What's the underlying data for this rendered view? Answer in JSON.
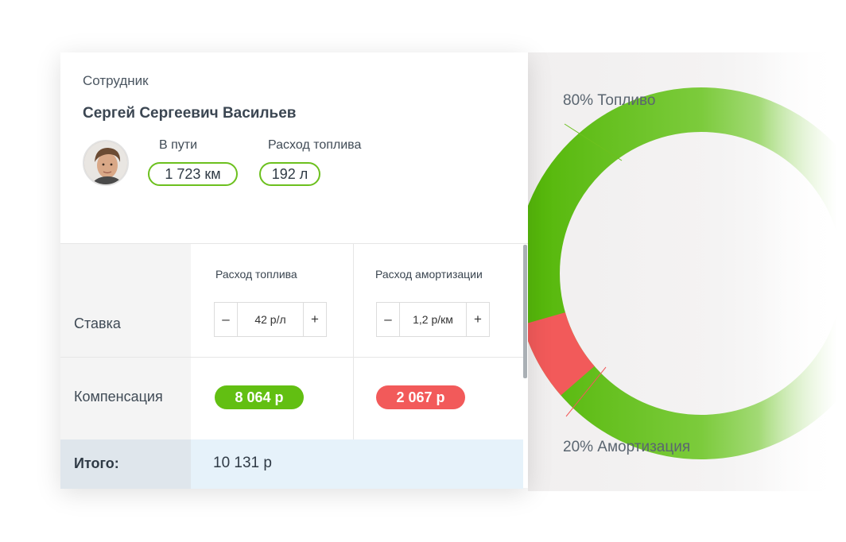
{
  "employee": {
    "header": "Сотрудник",
    "name": "Сергей Сергеевич Васильев",
    "stats": [
      {
        "label": "В пути",
        "value": "1 723 км"
      },
      {
        "label": "Расход топлива",
        "value": "192 л"
      }
    ]
  },
  "table": {
    "columns": [
      "Расход топлива",
      "Расход амортизации"
    ],
    "rows": {
      "rate_label": "Ставка",
      "compensation_label": "Компенсация",
      "total_label": "Итого:"
    },
    "rates": [
      {
        "minus": "–",
        "value": "42 р/л",
        "plus": "+"
      },
      {
        "minus": "–",
        "value": "1,2 р/км",
        "plus": "+"
      }
    ],
    "compensation": [
      "8 064 р",
      "2 067 р"
    ],
    "total": "10 131 р"
  },
  "chart_labels": {
    "fuel": "80% Топливо",
    "amortization": "20% Амортизация"
  },
  "colors": {
    "green": "#62bf12",
    "red": "#f25a5a",
    "outline_green": "#6cc01e"
  }
}
